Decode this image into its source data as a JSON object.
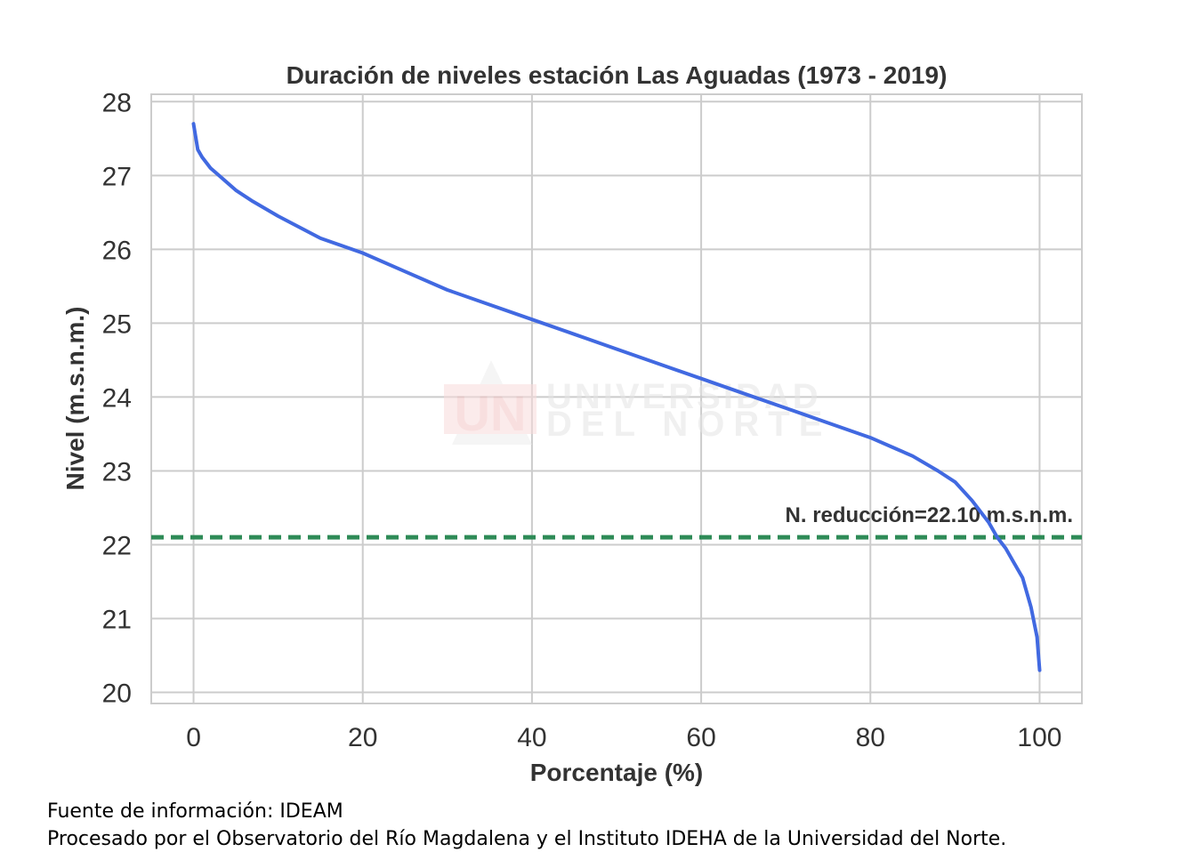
{
  "chart_data": {
    "type": "line",
    "title": "Duración de niveles estación Las Aguadas (1973 - 2019)",
    "xlabel": "Porcentaje (%)",
    "ylabel": "Nivel (m.s.n.m.)",
    "xlim": [
      -5,
      105
    ],
    "ylim": [
      19.85,
      28.1
    ],
    "xticks": [
      0,
      20,
      40,
      60,
      80,
      100
    ],
    "yticks": [
      20,
      21,
      22,
      23,
      24,
      25,
      26,
      27,
      28
    ],
    "grid": true,
    "series": [
      {
        "color": "#4169e1",
        "x": [
          0,
          0.5,
          1,
          2,
          3,
          5,
          7,
          10,
          15,
          20,
          25,
          30,
          35,
          40,
          45,
          50,
          55,
          60,
          65,
          70,
          75,
          80,
          83,
          85,
          88,
          90,
          92,
          93,
          94,
          95,
          96,
          97,
          98,
          99,
          99.7,
          100
        ],
        "y": [
          27.7,
          27.35,
          27.25,
          27.1,
          27.0,
          26.8,
          26.65,
          26.45,
          26.15,
          25.95,
          25.7,
          25.45,
          25.25,
          25.05,
          24.85,
          24.65,
          24.45,
          24.25,
          24.05,
          23.85,
          23.65,
          23.45,
          23.3,
          23.2,
          23.0,
          22.85,
          22.6,
          22.45,
          22.3,
          22.1,
          21.95,
          21.75,
          21.55,
          21.15,
          20.75,
          20.3
        ]
      }
    ],
    "reference_line": {
      "y": 22.1,
      "label": "N. reducción=22.10 m.s.n.m.",
      "color": "#2e8b57",
      "style": "dashed"
    }
  },
  "watermark": {
    "logo": "UN",
    "line1": "UNIVERSIDAD",
    "line2": "DEL NORTE"
  },
  "caption": {
    "source": "Fuente de información: IDEAM",
    "processed": "Procesado por el Observatorio del Río Magdalena y el Instituto IDEHA de la Universidad del Norte."
  }
}
